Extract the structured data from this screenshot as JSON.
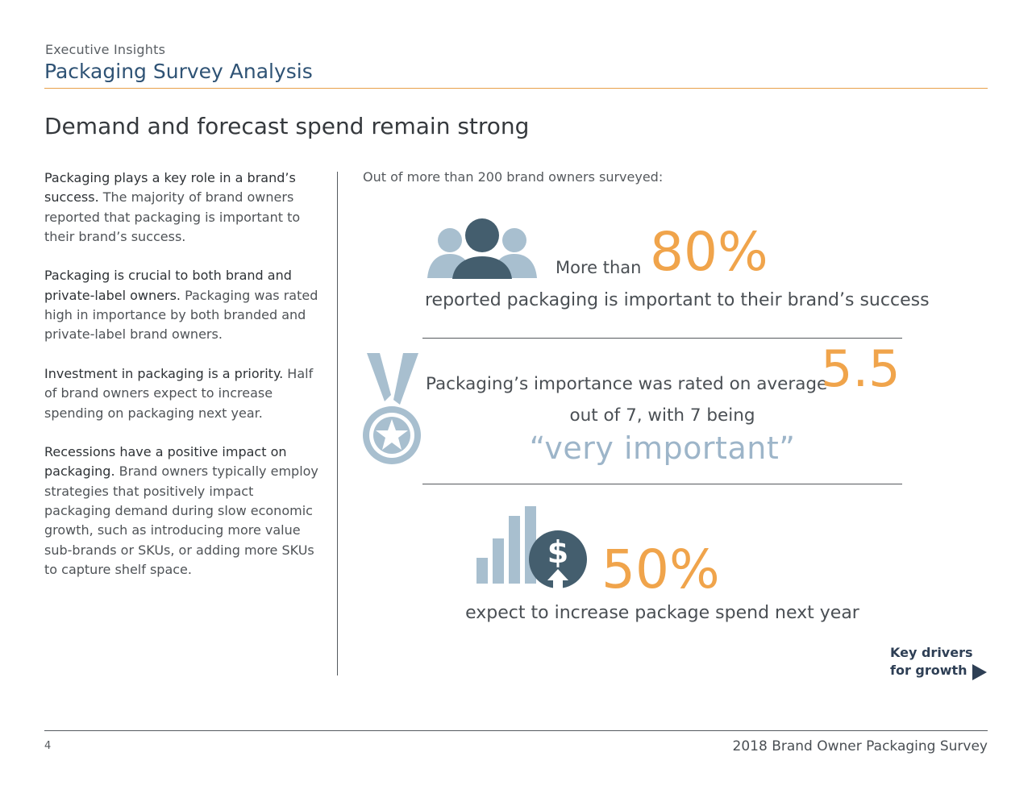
{
  "header": {
    "eyebrow": "Executive Insights",
    "title": "Packaging Survey Analysis"
  },
  "headline": "Demand and forecast spend remain strong",
  "left_column": [
    {
      "lead": "Packaging plays a key role in a brand’s success.",
      "body": " The majority of brand owners reported that packaging is important to their brand’s success."
    },
    {
      "lead": "Packaging is crucial to both brand and private-label owners.",
      "body": " Packaging was rated high in importance by both branded and private-label brand owners."
    },
    {
      "lead": "Investment in packaging is a priority.",
      "body": " Half of brand owners expect to increase spending on packaging next year."
    },
    {
      "lead": "Recessions have a positive impact on packaging.",
      "body": " Brand owners typically employ strategies that positively impact packaging demand during slow economic growth, such as introducing more value sub-brands or SKUs, or adding more SKUs to capture shelf space."
    }
  ],
  "intro": "Out of more than 200 brand owners surveyed:",
  "stat1": {
    "prefix": "More than",
    "value": "80%",
    "caption": "reported packaging is important to their brand’s success",
    "icon": "people-group-icon"
  },
  "stat2": {
    "text1": "Packaging’s importance was rated on average",
    "value": "5.5",
    "text2": "out of 7, with 7 being",
    "quote": "“very important”",
    "icon": "medal-icon"
  },
  "stat3": {
    "value": "50%",
    "caption": "expect to increase package spend next year",
    "icon": "bar-chart-dollar-up-icon"
  },
  "nav": {
    "line1": "Key drivers",
    "line2": "for growth"
  },
  "footer": {
    "page_number": "4",
    "title": "2018 Brand Owner Packaging Survey"
  },
  "colors": {
    "accent_orange": "#f0a44b",
    "navy": "#2f5375",
    "slate_icon": "#445e6e",
    "light_blue_icon": "#a8bfcf"
  }
}
